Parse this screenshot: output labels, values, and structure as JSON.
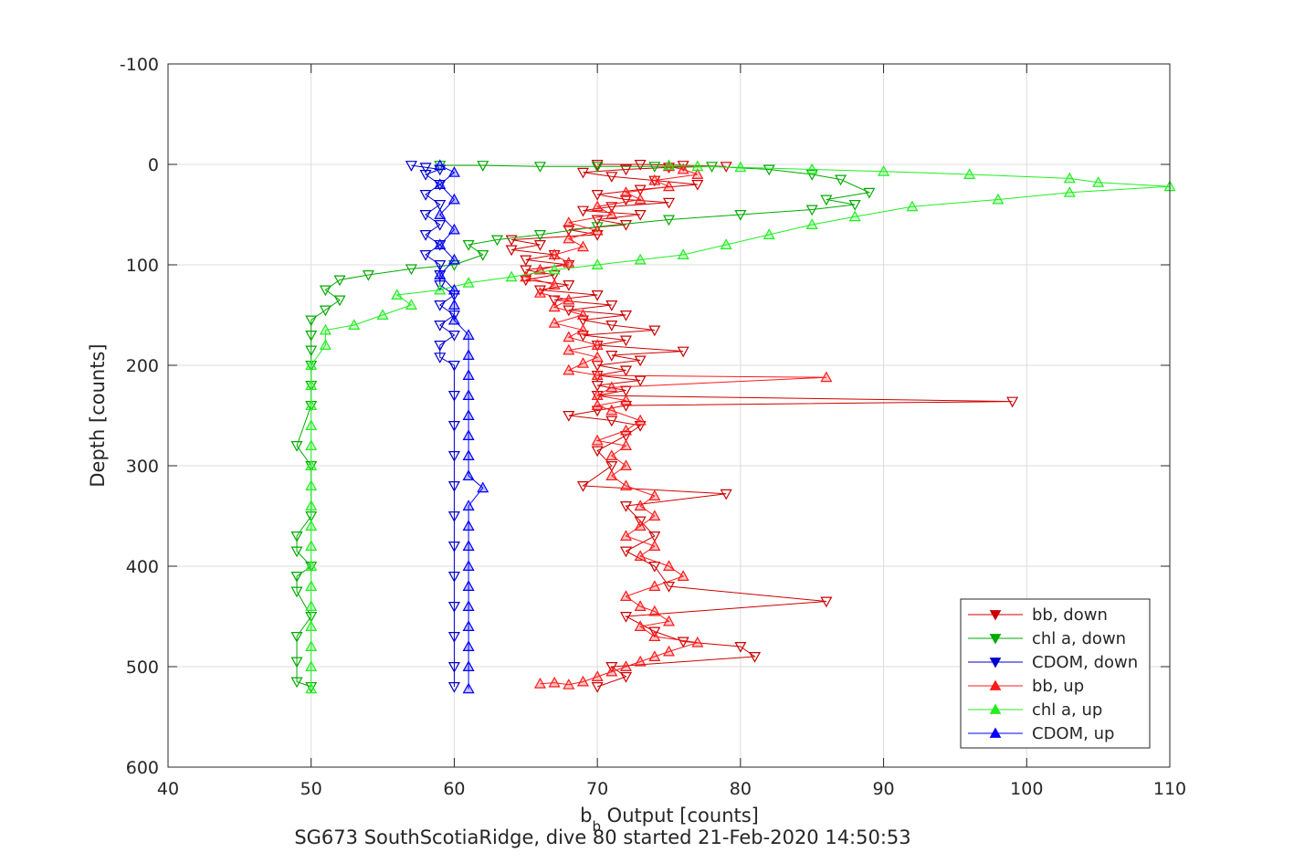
{
  "chart_data": {
    "type": "scatter",
    "xlabel": "b",
    "xlabel_sub": "b",
    "xlabel_rest": " Output [counts]",
    "ylabel": "Depth [counts]",
    "caption": "SG673 SouthScotiaRidge, dive 80 started 21-Feb-2020 14:50:53",
    "xlim": [
      40,
      110
    ],
    "ylim": [
      -100,
      600
    ],
    "y_reversed": true,
    "grid": true,
    "xticks": [
      40,
      50,
      60,
      70,
      80,
      90,
      100,
      110
    ],
    "yticks": [
      -100,
      0,
      100,
      200,
      300,
      400,
      500,
      600
    ],
    "legend_position": "bottom-right",
    "series": [
      {
        "name": "bb, down",
        "color": "#cc0000",
        "marker": "triangle-down",
        "connected": true,
        "points": [
          [
            70,
            0
          ],
          [
            73,
            0
          ],
          [
            76,
            1
          ],
          [
            79,
            2
          ],
          [
            75,
            3
          ],
          [
            72,
            5
          ],
          [
            69,
            8
          ],
          [
            71,
            12
          ],
          [
            74,
            16
          ],
          [
            77,
            20
          ],
          [
            73,
            25
          ],
          [
            70,
            30
          ],
          [
            72,
            35
          ],
          [
            75,
            38
          ],
          [
            71,
            42
          ],
          [
            69,
            46
          ],
          [
            73,
            50
          ],
          [
            70,
            55
          ],
          [
            72,
            60
          ],
          [
            68,
            65
          ],
          [
            70,
            70
          ],
          [
            64,
            75
          ],
          [
            66,
            80
          ],
          [
            64,
            85
          ],
          [
            67,
            90
          ],
          [
            65,
            95
          ],
          [
            68,
            100
          ],
          [
            65,
            105
          ],
          [
            67,
            110
          ],
          [
            65,
            115
          ],
          [
            68,
            120
          ],
          [
            66,
            125
          ],
          [
            70,
            130
          ],
          [
            67,
            135
          ],
          [
            71,
            140
          ],
          [
            68,
            145
          ],
          [
            72,
            150
          ],
          [
            69,
            155
          ],
          [
            71,
            160
          ],
          [
            74,
            165
          ],
          [
            69,
            170
          ],
          [
            72,
            175
          ],
          [
            70,
            180
          ],
          [
            76,
            186
          ],
          [
            71,
            190
          ],
          [
            73,
            195
          ],
          [
            70,
            200
          ],
          [
            72,
            205
          ],
          [
            70,
            210
          ],
          [
            73,
            215
          ],
          [
            70,
            220
          ],
          [
            72,
            225
          ],
          [
            70,
            230
          ],
          [
            99,
            236
          ],
          [
            72,
            240
          ],
          [
            70,
            245
          ],
          [
            68,
            250
          ],
          [
            71,
            255
          ],
          [
            73,
            260
          ],
          [
            72,
            270
          ],
          [
            70,
            285
          ],
          [
            71,
            300
          ],
          [
            69,
            320
          ],
          [
            79,
            328
          ],
          [
            72,
            340
          ],
          [
            73,
            355
          ],
          [
            74,
            370
          ],
          [
            72,
            385
          ],
          [
            74,
            400
          ],
          [
            75,
            420
          ],
          [
            86,
            435
          ],
          [
            72,
            450
          ],
          [
            74,
            465
          ],
          [
            76,
            475
          ],
          [
            80,
            480
          ],
          [
            81,
            490
          ],
          [
            71,
            500
          ],
          [
            72,
            510
          ],
          [
            70,
            520
          ]
        ]
      },
      {
        "name": "chl a, down",
        "color": "#00aa00",
        "marker": "triangle-down",
        "connected": true,
        "points": [
          [
            59,
            1
          ],
          [
            62,
            1
          ],
          [
            66,
            2
          ],
          [
            70,
            2
          ],
          [
            74,
            2
          ],
          [
            78,
            2
          ],
          [
            82,
            5
          ],
          [
            85,
            10
          ],
          [
            87,
            15
          ],
          [
            89,
            28
          ],
          [
            86,
            35
          ],
          [
            88,
            40
          ],
          [
            85,
            45
          ],
          [
            80,
            50
          ],
          [
            75,
            55
          ],
          [
            70,
            62
          ],
          [
            66,
            70
          ],
          [
            63,
            75
          ],
          [
            61,
            80
          ],
          [
            62,
            90
          ],
          [
            60,
            100
          ],
          [
            57,
            104
          ],
          [
            54,
            110
          ],
          [
            52,
            115
          ],
          [
            51,
            125
          ],
          [
            52,
            135
          ],
          [
            51,
            145
          ],
          [
            50,
            155
          ],
          [
            50,
            170
          ],
          [
            50,
            185
          ],
          [
            50,
            200
          ],
          [
            50,
            220
          ],
          [
            50,
            240
          ],
          [
            49,
            280
          ],
          [
            50,
            300
          ],
          [
            50,
            350
          ],
          [
            49,
            370
          ],
          [
            49,
            385
          ],
          [
            50,
            400
          ],
          [
            49,
            410
          ],
          [
            49,
            425
          ],
          [
            50,
            450
          ],
          [
            49,
            470
          ],
          [
            49,
            495
          ],
          [
            49,
            515
          ],
          [
            50,
            520
          ]
        ]
      },
      {
        "name": "CDOM, down",
        "color": "#0000cc",
        "marker": "triangle-down",
        "connected": true,
        "points": [
          [
            57,
            1
          ],
          [
            58,
            3
          ],
          [
            59,
            5
          ],
          [
            58,
            10
          ],
          [
            59,
            20
          ],
          [
            58,
            30
          ],
          [
            59,
            40
          ],
          [
            58,
            50
          ],
          [
            59,
            60
          ],
          [
            58,
            70
          ],
          [
            59,
            80
          ],
          [
            58,
            90
          ],
          [
            59,
            100
          ],
          [
            59,
            110
          ],
          [
            59,
            120
          ],
          [
            60,
            130
          ],
          [
            59,
            140
          ],
          [
            60,
            150
          ],
          [
            59,
            160
          ],
          [
            60,
            170
          ],
          [
            59,
            180
          ],
          [
            59,
            192
          ],
          [
            60,
            200
          ],
          [
            60,
            230
          ],
          [
            60,
            260
          ],
          [
            60,
            290
          ],
          [
            60,
            320
          ],
          [
            60,
            350
          ],
          [
            60,
            380
          ],
          [
            60,
            410
          ],
          [
            60,
            440
          ],
          [
            60,
            470
          ],
          [
            60,
            500
          ],
          [
            60,
            520
          ]
        ]
      },
      {
        "name": "bb, up",
        "color": "#ff1a1a",
        "marker": "triangle-up",
        "connected": true,
        "points": [
          [
            66,
            517
          ],
          [
            67,
            516
          ],
          [
            68,
            518
          ],
          [
            69,
            515
          ],
          [
            70,
            510
          ],
          [
            71,
            505
          ],
          [
            72,
            500
          ],
          [
            73,
            495
          ],
          [
            74,
            490
          ],
          [
            75,
            485
          ],
          [
            77,
            476
          ],
          [
            74,
            470
          ],
          [
            73,
            460
          ],
          [
            75,
            455
          ],
          [
            74,
            445
          ],
          [
            73,
            440
          ],
          [
            72,
            430
          ],
          [
            74,
            420
          ],
          [
            76,
            410
          ],
          [
            75,
            400
          ],
          [
            73,
            390
          ],
          [
            74,
            380
          ],
          [
            72,
            370
          ],
          [
            73,
            360
          ],
          [
            74,
            350
          ],
          [
            73,
            340
          ],
          [
            74,
            330
          ],
          [
            72,
            320
          ],
          [
            71,
            310
          ],
          [
            72,
            300
          ],
          [
            71,
            290
          ],
          [
            72,
            280
          ],
          [
            70,
            275
          ],
          [
            72,
            265
          ],
          [
            73,
            255
          ],
          [
            71,
            245
          ],
          [
            70,
            240
          ],
          [
            72,
            235
          ],
          [
            70,
            230
          ],
          [
            71,
            222
          ],
          [
            86,
            212
          ],
          [
            70,
            210
          ],
          [
            68,
            205
          ],
          [
            69,
            198
          ],
          [
            70,
            192
          ],
          [
            68,
            185
          ],
          [
            70,
            180
          ],
          [
            68,
            172
          ],
          [
            69,
            165
          ],
          [
            67,
            158
          ],
          [
            69,
            150
          ],
          [
            67,
            142
          ],
          [
            68,
            135
          ],
          [
            66,
            128
          ],
          [
            67,
            120
          ],
          [
            65,
            112
          ],
          [
            66,
            105
          ],
          [
            68,
            98
          ],
          [
            67,
            90
          ],
          [
            69,
            82
          ],
          [
            68,
            74
          ],
          [
            70,
            66
          ],
          [
            68,
            58
          ],
          [
            71,
            50
          ],
          [
            70,
            42
          ],
          [
            73,
            35
          ],
          [
            72,
            28
          ],
          [
            75,
            22
          ],
          [
            74,
            16
          ],
          [
            77,
            10
          ],
          [
            76,
            5
          ],
          [
            75,
            2
          ]
        ]
      },
      {
        "name": "chl a, up",
        "color": "#22ee22",
        "marker": "triangle-up",
        "connected": true,
        "points": [
          [
            50,
            522
          ],
          [
            50,
            500
          ],
          [
            50,
            480
          ],
          [
            50,
            460
          ],
          [
            50,
            440
          ],
          [
            50,
            420
          ],
          [
            50,
            400
          ],
          [
            50,
            380
          ],
          [
            50,
            360
          ],
          [
            50,
            340
          ],
          [
            50,
            320
          ],
          [
            50,
            300
          ],
          [
            50,
            280
          ],
          [
            50,
            260
          ],
          [
            50,
            240
          ],
          [
            50,
            220
          ],
          [
            50,
            200
          ],
          [
            51,
            180
          ],
          [
            51,
            165
          ],
          [
            53,
            160
          ],
          [
            55,
            150
          ],
          [
            57,
            140
          ],
          [
            56,
            130
          ],
          [
            59,
            125
          ],
          [
            61,
            118
          ],
          [
            64,
            112
          ],
          [
            67,
            105
          ],
          [
            70,
            100
          ],
          [
            73,
            95
          ],
          [
            76,
            90
          ],
          [
            79,
            80
          ],
          [
            82,
            70
          ],
          [
            85,
            60
          ],
          [
            88,
            52
          ],
          [
            92,
            42
          ],
          [
            98,
            35
          ],
          [
            103,
            28
          ],
          [
            110,
            22
          ],
          [
            105,
            18
          ],
          [
            103,
            14
          ],
          [
            96,
            10
          ],
          [
            90,
            7
          ],
          [
            85,
            5
          ],
          [
            80,
            3
          ],
          [
            77,
            2
          ],
          [
            75,
            1
          ]
        ]
      },
      {
        "name": "CDOM, up",
        "color": "#0000ff",
        "marker": "triangle-up",
        "connected": true,
        "points": [
          [
            61,
            522
          ],
          [
            61,
            500
          ],
          [
            61,
            480
          ],
          [
            61,
            460
          ],
          [
            61,
            440
          ],
          [
            61,
            420
          ],
          [
            61,
            400
          ],
          [
            61,
            380
          ],
          [
            61,
            360
          ],
          [
            61,
            340
          ],
          [
            62,
            322
          ],
          [
            61,
            310
          ],
          [
            61,
            290
          ],
          [
            61,
            270
          ],
          [
            61,
            250
          ],
          [
            61,
            230
          ],
          [
            61,
            210
          ],
          [
            61,
            190
          ],
          [
            61,
            170
          ],
          [
            60,
            155
          ],
          [
            60,
            140
          ],
          [
            60,
            125
          ],
          [
            59,
            110
          ],
          [
            60,
            95
          ],
          [
            59,
            80
          ],
          [
            60,
            65
          ],
          [
            59,
            50
          ],
          [
            60,
            35
          ],
          [
            59,
            20
          ],
          [
            60,
            8
          ],
          [
            59,
            1
          ]
        ]
      }
    ]
  }
}
